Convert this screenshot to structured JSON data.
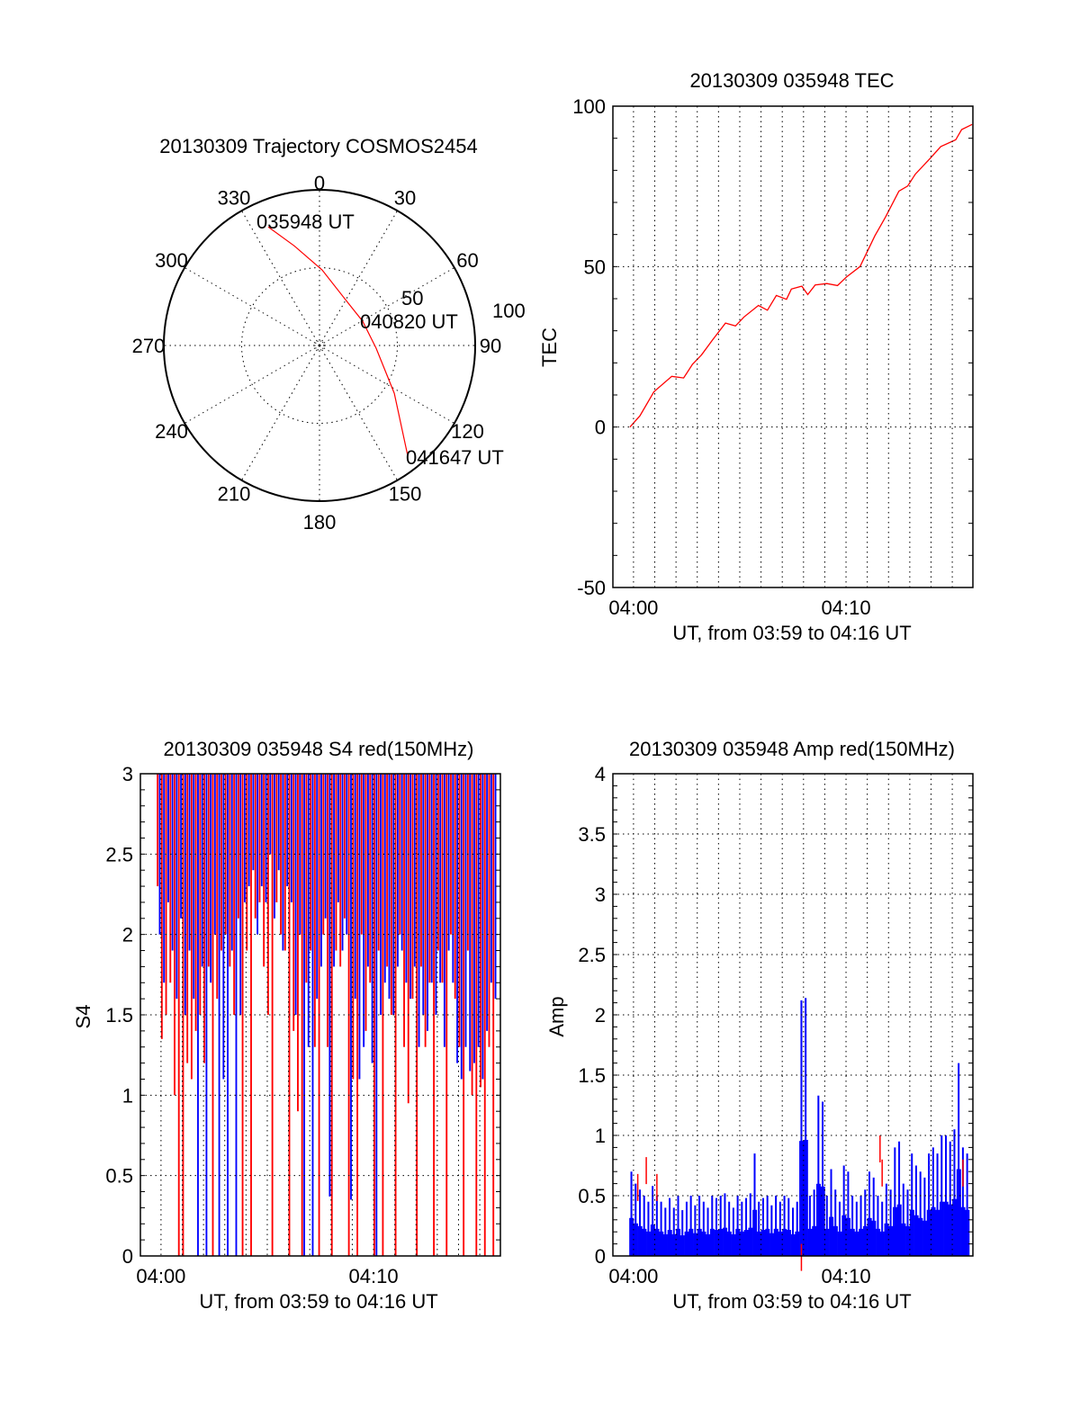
{
  "colors": {
    "red": "#ff0000",
    "blue": "#0000ff",
    "axis": "#000000"
  },
  "chart_data": [
    {
      "type": "polar",
      "title": "20130309 Trajectory COSMOS2454",
      "angle_labels": [
        "0",
        "30",
        "60",
        "90",
        "120",
        "150",
        "180",
        "210",
        "240",
        "270",
        "300",
        "330"
      ],
      "radial_labels": [
        "50",
        "100"
      ],
      "rlim": [
        0,
        100
      ],
      "annotations": {
        "start": "035948 UT",
        "mid": "040820 UT",
        "end": "041647 UT"
      },
      "trajectory": {
        "az_deg": [
          336.6,
          345.8,
          2,
          34,
          60.6,
          92.7,
          122.6,
          141.4
        ],
        "r": [
          83,
          66,
          48.6,
          32.9,
          31.8,
          36.4,
          57,
          90.9
        ]
      }
    },
    {
      "type": "line",
      "title": "20130309 035948 TEC",
      "xlabel": "UT, from 03:59 to 04:16 UT",
      "ylabel": "TEC",
      "x_unit": "minutes after 04:00",
      "xlim": [
        -0.97,
        15.97
      ],
      "ylim": [
        -50,
        100
      ],
      "yticks": [
        "100",
        "50",
        "0",
        "-50"
      ],
      "ytick_values": [
        100,
        50,
        0,
        -50
      ],
      "xticks": [
        "04:00",
        "04:10"
      ],
      "xtick_values": [
        0,
        10
      ],
      "series": [
        {
          "name": "TEC",
          "color": "red",
          "x": [
            -0.17,
            0.3,
            0.96,
            1.8,
            2.36,
            2.78,
            3.2,
            3.7,
            4.33,
            4.8,
            5.2,
            5.88,
            6.3,
            6.72,
            7.2,
            7.43,
            7.92,
            8.2,
            8.55,
            9.1,
            9.6,
            10.03,
            10.66,
            11.36,
            11.86,
            12.49,
            12.9,
            13.26,
            13.96,
            14.46,
            15.16,
            15.44,
            15.93
          ],
          "y": [
            0,
            3.5,
            11,
            15.8,
            15.3,
            19.6,
            22.5,
            27,
            32.4,
            31.5,
            34.3,
            37.9,
            36.4,
            41,
            39.8,
            43,
            43.9,
            41.3,
            44.3,
            44.7,
            44.1,
            46.8,
            50,
            59.6,
            65.5,
            73.5,
            75.1,
            78.8,
            83.7,
            87.4,
            89.5,
            92.7,
            94.3
          ]
        }
      ]
    },
    {
      "type": "bar",
      "title": "20130309 035948 S4 red(150MHz)",
      "xlabel": "UT, from 03:59 to 04:16 UT",
      "ylabel": "S4",
      "x_unit": "minutes after 04:00",
      "x_start": -0.2,
      "x_step": 0.2,
      "xlim": [
        -0.97,
        15.97
      ],
      "ylim": [
        0,
        3
      ],
      "yticks": [
        "3",
        "2.5",
        "2",
        "1.5",
        "1",
        "0.5",
        "0"
      ],
      "ytick_values": [
        3,
        2.5,
        2,
        1.5,
        1,
        0.5,
        0
      ],
      "xticks": [
        "04:00",
        "04:10"
      ],
      "xtick_values": [
        0,
        10
      ],
      "series": [
        {
          "name": "red",
          "color": "red",
          "values": [
            2.3,
            1.35,
            1.5,
            1.7,
            1.0,
            0,
            0,
            1.2,
            1.1,
            1.4,
            1.5,
            1.2,
            1.8,
            0,
            1.6,
            1.9,
            2.0,
            1.8,
            1.5,
            2.1,
            0,
            1.9,
            0,
            2.1,
            2.2,
            1.8,
            1.5,
            0,
            2.2,
            2.0,
            1.9,
            0,
            1.4,
            0.9,
            0,
            1.7,
            1.9,
            1.3,
            0,
            2.0,
            1.3,
            0,
            1.9,
            1.8,
            2.1,
            0,
            1.1,
            0,
            2.0,
            1.4,
            1.7,
            0,
            1.9,
            0,
            1.8,
            1.5,
            0,
            2.0,
            1.3,
            0.95,
            1.6,
            0,
            1.8,
            1.3,
            1.7,
            0,
            1.9,
            1.7,
            0,
            2.0,
            1.6,
            1.3,
            0,
            1.9,
            1.0,
            0,
            1.05,
            0,
            1.3,
            0
          ]
        },
        {
          "name": "blue",
          "color": "blue",
          "values": [
            2.0,
            1.7,
            2.2,
            1.9,
            1.6,
            2.1,
            1.5,
            1.9,
            1.6,
            0,
            1.8,
            0,
            1.7,
            2.0,
            0,
            1.1,
            0,
            1.9,
            0,
            1.5,
            2.2,
            2.3,
            2.4,
            2.0,
            2.3,
            2.2,
            2.5,
            2.1,
            2.4,
            1.9,
            2.3,
            2.2,
            1.5,
            2.0,
            0,
            1.3,
            0,
            1.6,
            1.8,
            2.1,
            0.37,
            1.8,
            2.2,
            1.9,
            2.0,
            0.35,
            1.6,
            1.1,
            1.3,
            1.8,
            1.2,
            0,
            1.5,
            1.7,
            1.6,
            1.5,
            1.8,
            1.9,
            1.7,
            1.6,
            1.8,
            1.3,
            1.5,
            1.4,
            1.7,
            1.5,
            1.7,
            1.3,
            1.9,
            1.7,
            1.2,
            1.1,
            1.3,
            1.15,
            1.2,
            1.3,
            1.1,
            1.4,
            1.7,
            1.6
          ]
        }
      ]
    },
    {
      "type": "bar",
      "title": "20130309 035948 Amp red(150MHz)",
      "xlabel": "UT, from 03:59 to 04:16 UT",
      "ylabel": "Amp",
      "x_unit": "minutes after 04:00",
      "x_start": -0.2,
      "x_step": 0.2,
      "xlim": [
        -0.97,
        15.97
      ],
      "ylim": [
        0,
        4
      ],
      "yticks": [
        "4",
        "3.5",
        "3",
        "2.5",
        "2",
        "1.5",
        "1",
        "0.5",
        "0"
      ],
      "ytick_values": [
        4,
        3.5,
        3,
        2.5,
        2,
        1.5,
        1,
        0.5,
        0
      ],
      "xticks": [
        "04:00",
        "04:10"
      ],
      "xtick_values": [
        0,
        10
      ],
      "series": [
        {
          "name": "blue",
          "color": "blue",
          "values": [
            0.7,
            0.6,
            0.55,
            0.5,
            0.45,
            0.58,
            0.5,
            0.45,
            0.4,
            0.48,
            0.4,
            0.5,
            0.38,
            0.45,
            0.5,
            0.42,
            0.5,
            0.45,
            0.4,
            0.5,
            0.48,
            0.5,
            0.52,
            0.45,
            0.4,
            0.5,
            0.45,
            0.48,
            0.52,
            0.85,
            0.45,
            0.48,
            0.5,
            0.42,
            0.5,
            0.45,
            0.5,
            0.48,
            0.4,
            0.45,
            2.12,
            2.14,
            0.5,
            0.55,
            1.33,
            1.28,
            0.5,
            0.72,
            0.55,
            0.45,
            0.75,
            0.7,
            0.5,
            0.45,
            0.5,
            0.55,
            0.7,
            0.65,
            0.5,
            0.45,
            0.6,
            0.55,
            0.9,
            0.95,
            0.6,
            0.55,
            0.85,
            0.75,
            0.7,
            0.65,
            0.85,
            0.9,
            0.85,
            1.0,
            1.0,
            0.95,
            1.05,
            1.6,
            0.9,
            0.85
          ]
        },
        {
          "name": "red",
          "color": "red",
          "points": [
            [
              0.2,
              0.68
            ],
            [
              0.6,
              0.82
            ],
            [
              1.1,
              0.68
            ],
            [
              7.9,
              0.1
            ],
            [
              11.6,
              1.0
            ],
            [
              11.7,
              0.8
            ],
            [
              15.5,
              0.8
            ]
          ]
        }
      ]
    }
  ]
}
